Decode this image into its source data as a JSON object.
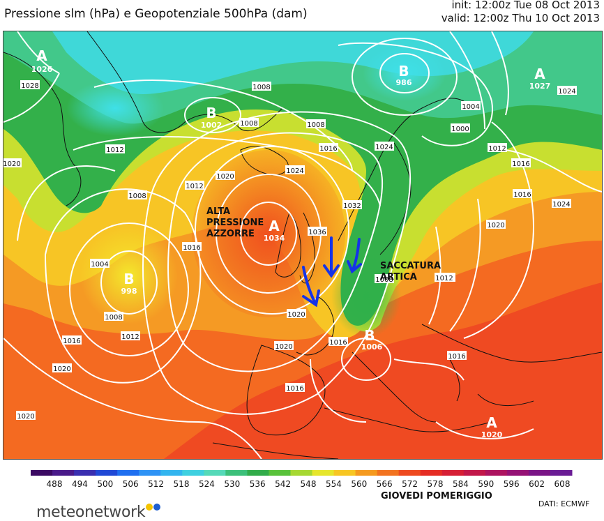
{
  "header": {
    "title": "Pressione slm (hPa) e Geopotenziale 500hPa (dam)",
    "init": "init: 12:00z Tue 08 Oct 2013",
    "valid": "valid: 12:00z Thu 10 Oct 2013"
  },
  "annotations": {
    "azores": "ALTA\nPRESSIONE\nAZZORRE",
    "arctic": "SACCATURA\nARTICA",
    "footer": "GIOVEDI POMERIGGIO",
    "source": "DATI:  ECMWF"
  },
  "brand": {
    "name": "meteonetwork",
    "dot1": "#f5c400",
    "dot2": "#1f5fd0"
  },
  "colors": {
    "arrow": "#1533e8",
    "isobar": "#ffffff"
  },
  "colorbar": {
    "ticks": [
      "488",
      "494",
      "500",
      "506",
      "512",
      "518",
      "524",
      "530",
      "536",
      "542",
      "548",
      "554",
      "560",
      "566",
      "572",
      "578",
      "584",
      "590",
      "596",
      "602",
      "608"
    ],
    "colors": [
      "#3b0a63",
      "#4a1a8a",
      "#3a2fb0",
      "#2049d6",
      "#1f6ff0",
      "#2e93f5",
      "#33b5ef",
      "#3fd0e0",
      "#55d9b8",
      "#3cc07a",
      "#32ac4a",
      "#59c23a",
      "#a6d832",
      "#e6e62c",
      "#f7c623",
      "#f59a1f",
      "#f27320",
      "#ee4a1f",
      "#e52d24",
      "#d61f35",
      "#c2184a",
      "#ad1460",
      "#951275",
      "#7a1586",
      "#6a1c95"
    ]
  },
  "pressure_centers": [
    {
      "letter": "A",
      "value": "1026"
    },
    {
      "letter": "B",
      "value": "986"
    },
    {
      "letter": "A",
      "value": "1027"
    },
    {
      "letter": "B",
      "value": "1002"
    },
    {
      "letter": "A",
      "value": "1034"
    },
    {
      "letter": "B",
      "value": "998"
    },
    {
      "letter": "B",
      "value": "1006"
    },
    {
      "letter": "A",
      "value": "1020"
    }
  ],
  "isobar_labels": [
    "1008",
    "1008",
    "1008",
    "1004",
    "1000",
    "1012",
    "1016",
    "1020",
    "1024",
    "1028",
    "1032",
    "1036",
    "1020",
    "1016",
    "1012",
    "1008",
    "1004",
    "1008",
    "1012",
    "1016",
    "1020",
    "1020",
    "1016",
    "1024",
    "1024",
    "1016",
    "1012",
    "1008",
    "1012",
    "1024",
    "1020",
    "1016",
    "1012",
    "1020",
    "1016",
    "1020",
    "1016"
  ]
}
